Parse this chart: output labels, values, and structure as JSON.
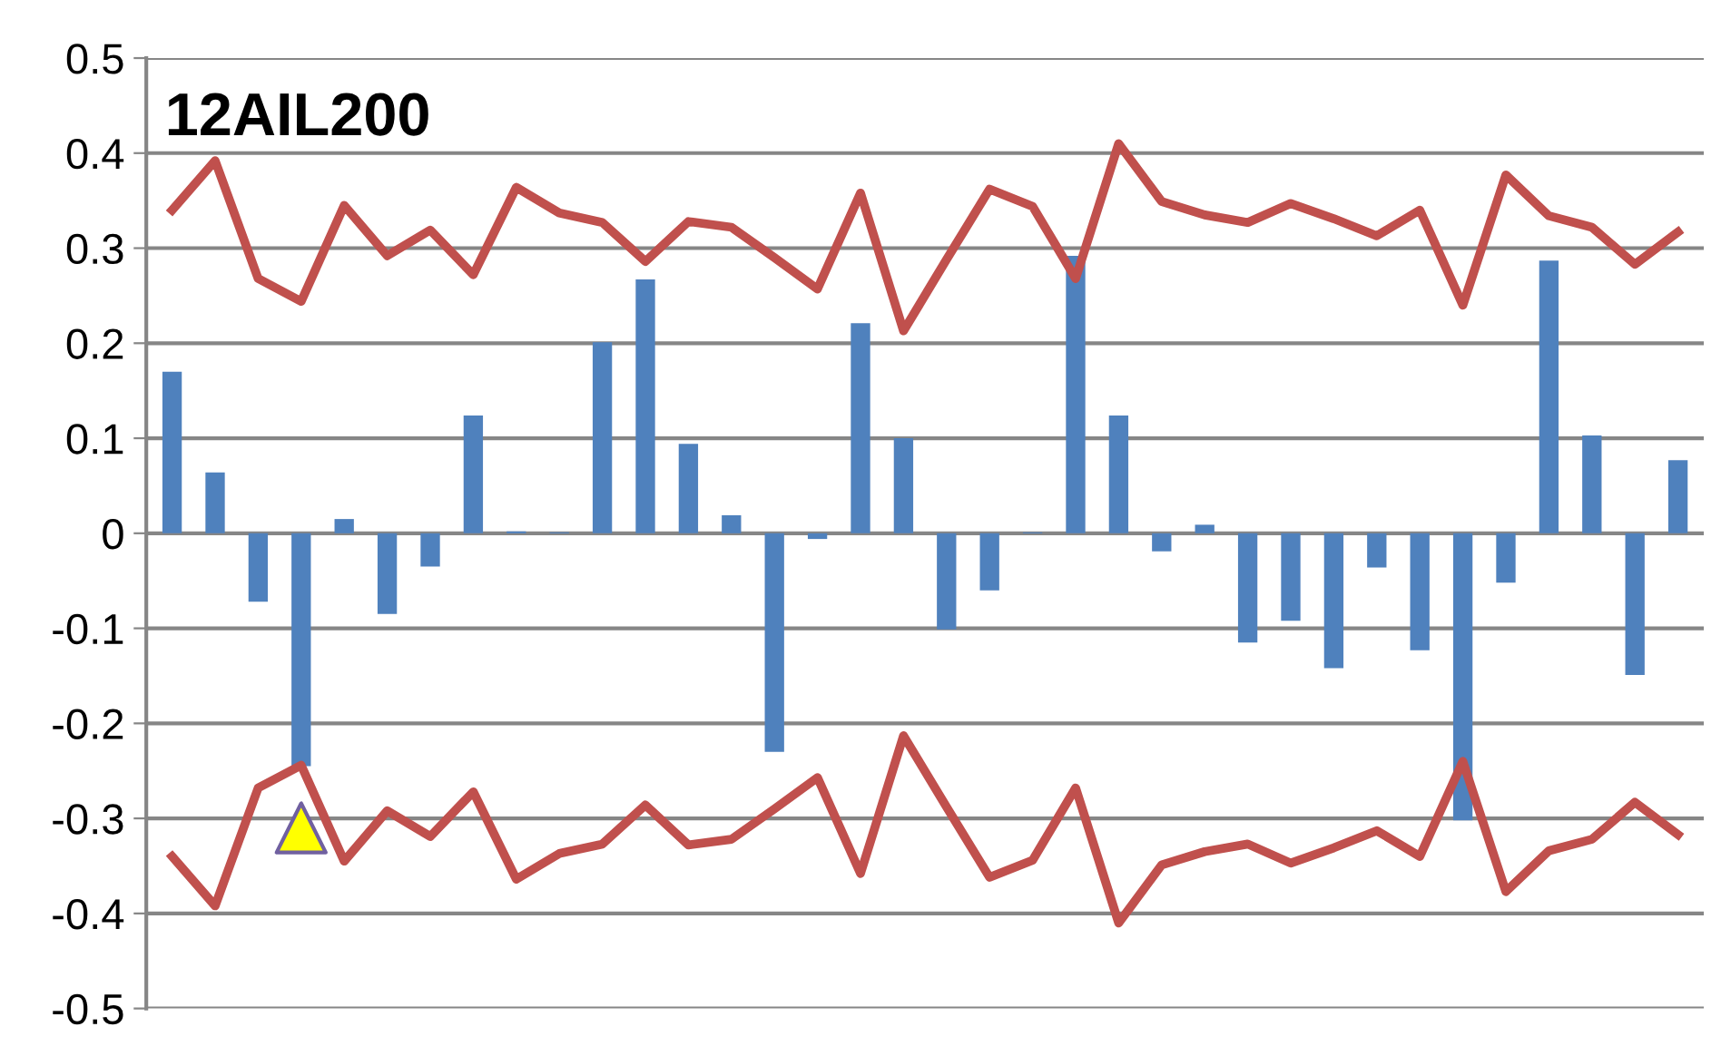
{
  "chart_data": {
    "type": "bar",
    "title": "12AIL200",
    "categories": [
      null,
      null,
      null,
      null,
      null,
      null,
      null,
      null,
      null,
      null,
      null,
      null,
      null,
      null,
      null,
      null,
      null,
      null,
      null,
      null,
      null,
      null,
      null,
      null,
      null,
      null,
      null,
      null,
      null,
      null,
      null,
      null,
      null,
      null,
      null,
      null
    ],
    "series": [
      {
        "color": "#4f81bd",
        "values": [
          0.17,
          0.064,
          -0.072,
          -0.245,
          0.015,
          -0.085,
          -0.035,
          0.124,
          0.002,
          0.001,
          0.201,
          0.267,
          0.094,
          0.019,
          -0.23,
          -0.006,
          0.221,
          0.1,
          -0.101,
          -0.06,
          0.001,
          0.292,
          0.124,
          -0.019,
          0.009,
          -0.115,
          -0.092,
          -0.142,
          -0.036,
          -0.123,
          -0.302,
          -0.052,
          0.287,
          0.103,
          -0.149,
          0.077
        ]
      },
      {
        "type": "line",
        "color": "#c0504d",
        "marker": "none",
        "line_style": "solid",
        "values": [
          0.34,
          0.392,
          0.268,
          0.244,
          0.345,
          0.292,
          0.319,
          0.272,
          0.364,
          0.337,
          0.327,
          0.286,
          0.328,
          0.322,
          0.29,
          0.257,
          0.358,
          0.213,
          0.288,
          0.362,
          0.344,
          0.268,
          0.41,
          0.349,
          0.335,
          0.327,
          0.347,
          0.331,
          0.313,
          0.34,
          0.24,
          0.377,
          0.334,
          0.322,
          0.283,
          0.317
        ]
      },
      {
        "type": "line",
        "color": "#c0504d",
        "marker": "none",
        "line_style": "solid",
        "values": [
          -0.34,
          -0.392,
          -0.268,
          -0.244,
          -0.345,
          -0.292,
          -0.319,
          -0.272,
          -0.364,
          -0.337,
          -0.327,
          -0.286,
          -0.328,
          -0.322,
          -0.29,
          -0.257,
          -0.358,
          -0.213,
          -0.288,
          -0.362,
          -0.344,
          -0.268,
          -0.41,
          -0.349,
          -0.335,
          -0.327,
          -0.347,
          -0.331,
          -0.313,
          -0.34,
          -0.24,
          -0.377,
          -0.334,
          -0.322,
          -0.283,
          -0.317
        ]
      },
      {
        "type": "scatter",
        "color": "#ffff00",
        "marker": "triangle",
        "values": [
          null,
          null,
          null,
          -0.31,
          null,
          null,
          null,
          null,
          null,
          null,
          null,
          null,
          null,
          null,
          null,
          null,
          null,
          null,
          null,
          null,
          null,
          null,
          null,
          null,
          null,
          null,
          null,
          null,
          null,
          null,
          null,
          null,
          null,
          null,
          null,
          null
        ]
      }
    ],
    "ylim": [
      -0.5,
      0.5
    ],
    "yticks": [
      -0.5,
      -0.4,
      -0.3,
      -0.2,
      -0.1,
      0,
      0.1,
      0.2,
      0.3,
      0.4,
      0.5
    ],
    "grid": "y",
    "legend": false,
    "tick_labels": "y"
  }
}
